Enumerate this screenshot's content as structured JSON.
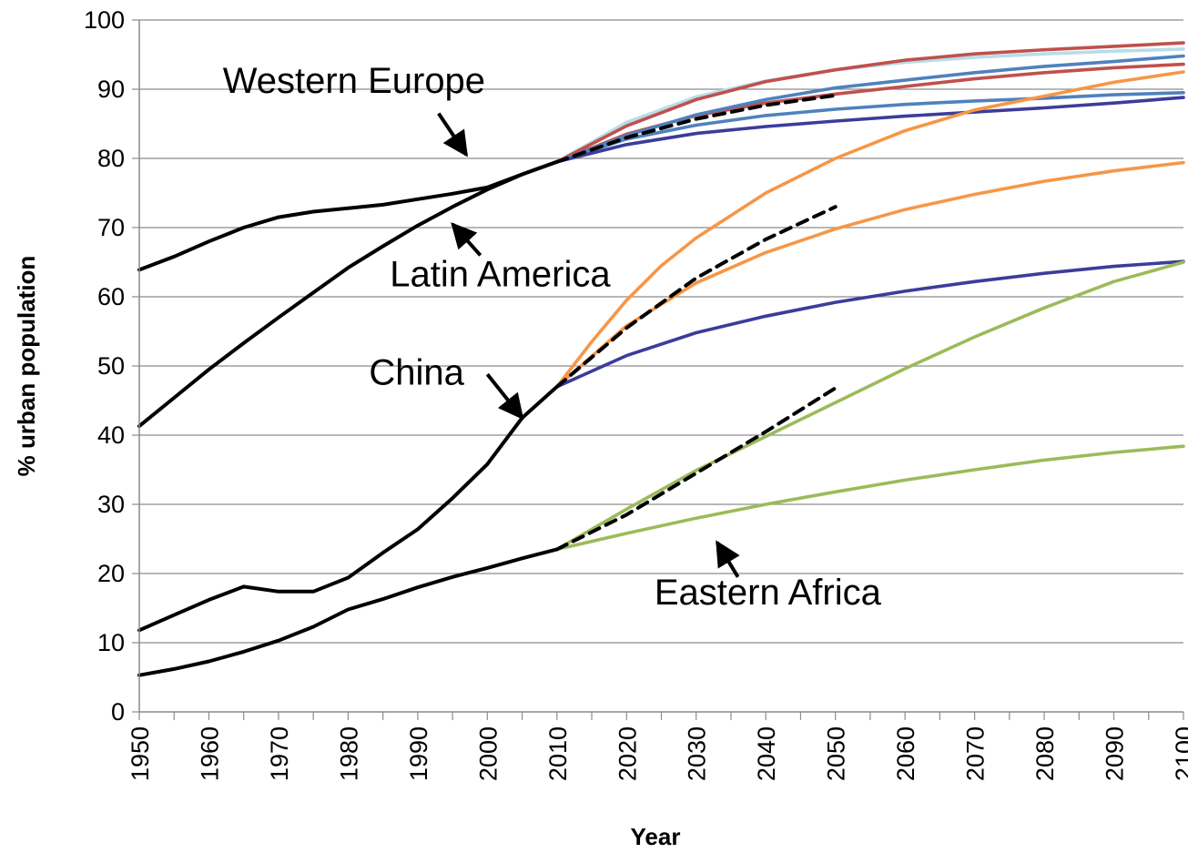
{
  "chart_data": {
    "type": "line",
    "title": "",
    "xlabel": "Year",
    "ylabel": "% urban population",
    "xlim": [
      1950,
      2100
    ],
    "ylim": [
      0,
      100
    ],
    "yticks": [
      0,
      10,
      20,
      30,
      40,
      50,
      60,
      70,
      80,
      90,
      100
    ],
    "xticks": [
      1950,
      1960,
      1970,
      1980,
      1990,
      2000,
      2010,
      2020,
      2030,
      2040,
      2050,
      2060,
      2070,
      2080,
      2090,
      2100
    ],
    "grid": "horizontal",
    "legend": "none",
    "annotations": [
      {
        "text": "Western Europe",
        "x": 1962,
        "y": 89.5,
        "arrow_from": [
          1993,
          86.5
        ],
        "arrow_to": [
          1997,
          80.5
        ]
      },
      {
        "text": "Latin America",
        "x": 1986,
        "y": 61.5,
        "arrow_from": [
          1999,
          66
        ],
        "arrow_to": [
          1995,
          70.5
        ]
      },
      {
        "text": "China",
        "x": 1983,
        "y": 47.3,
        "arrow_from": [
          2000,
          48.8
        ],
        "arrow_to": [
          2005,
          42.5
        ]
      },
      {
        "text": "Eastern Africa",
        "x": 2024,
        "y": 15.5,
        "arrow_from": [
          2036,
          19.5
        ],
        "arrow_to": [
          2033,
          24.5
        ]
      }
    ],
    "series": [
      {
        "color": "#000000",
        "dash": "solid",
        "x": [
          1950,
          1955,
          1960,
          1965,
          1970,
          1975,
          1980,
          1985,
          1990,
          1995,
          2000,
          2005,
          2010
        ],
        "values": [
          63.9,
          65.8,
          68.0,
          70.0,
          71.5,
          72.3,
          72.8,
          73.3,
          74.1,
          74.9,
          75.8,
          77.7,
          79.5
        ]
      },
      {
        "color": "#000000",
        "dash": "solid",
        "x": [
          1950,
          1955,
          1960,
          1965,
          1970,
          1975,
          1980,
          1985,
          1990,
          1995,
          2000,
          2005,
          2010
        ],
        "values": [
          41.3,
          45.4,
          49.5,
          53.3,
          57.0,
          60.6,
          64.2,
          67.3,
          70.3,
          73.0,
          75.5,
          77.7,
          79.5
        ]
      },
      {
        "color": "#000000",
        "dash": "solid",
        "x": [
          1950,
          1955,
          1960,
          1965,
          1970,
          1975,
          1980,
          1985,
          1990,
          1995,
          2000,
          2005,
          2010
        ],
        "values": [
          11.8,
          14.0,
          16.2,
          18.1,
          17.4,
          17.4,
          19.4,
          23.0,
          26.4,
          30.9,
          35.8,
          42.5,
          47.0
        ]
      },
      {
        "color": "#000000",
        "dash": "solid",
        "x": [
          1950,
          1955,
          1960,
          1965,
          1970,
          1975,
          1980,
          1985,
          1990,
          1995,
          2000,
          2005,
          2010
        ],
        "values": [
          5.3,
          6.2,
          7.3,
          8.7,
          10.3,
          12.3,
          14.8,
          16.3,
          18.0,
          19.5,
          20.8,
          22.2,
          23.5
        ]
      },
      {
        "color": "#b7dde8",
        "dash": "solid",
        "x": [
          2010,
          2020,
          2030,
          2040,
          2050,
          2060,
          2070,
          2080,
          2090,
          2100
        ],
        "values": [
          79.5,
          85.2,
          88.9,
          91.2,
          92.8,
          93.9,
          94.6,
          95.1,
          95.5,
          95.8
        ]
      },
      {
        "color": "#c0504d",
        "dash": "solid",
        "x": [
          2010,
          2020,
          2030,
          2040,
          2050,
          2060,
          2070,
          2080,
          2090,
          2100
        ],
        "values": [
          79.5,
          84.7,
          88.5,
          91.1,
          92.8,
          94.2,
          95.1,
          95.7,
          96.2,
          96.7
        ]
      },
      {
        "color": "#c0504d",
        "dash": "solid",
        "x": [
          2010,
          2020,
          2030,
          2040,
          2050,
          2060,
          2070,
          2080,
          2090,
          2100
        ],
        "values": [
          79.5,
          83.5,
          86.2,
          88.0,
          89.3,
          90.4,
          91.5,
          92.4,
          93.1,
          93.6
        ]
      },
      {
        "color": "#4f81bd",
        "dash": "solid",
        "x": [
          2010,
          2020,
          2030,
          2040,
          2050,
          2060,
          2070,
          2080,
          2090,
          2100
        ],
        "values": [
          79.5,
          83.3,
          86.3,
          88.5,
          90.2,
          91.3,
          92.4,
          93.3,
          94.0,
          94.8
        ]
      },
      {
        "color": "#4f81bd",
        "dash": "solid",
        "x": [
          2010,
          2020,
          2030,
          2040,
          2050,
          2060,
          2070,
          2080,
          2090,
          2100
        ],
        "values": [
          79.5,
          82.8,
          84.8,
          86.2,
          87.1,
          87.8,
          88.3,
          88.7,
          89.2,
          89.5
        ]
      },
      {
        "color": "#3c3c9c",
        "dash": "solid",
        "x": [
          2010,
          2020,
          2030,
          2040,
          2050,
          2060,
          2070,
          2080,
          2090,
          2100
        ],
        "values": [
          79.5,
          82.0,
          83.6,
          84.6,
          85.4,
          86.1,
          86.7,
          87.3,
          88.0,
          88.8
        ]
      },
      {
        "color": "#000000",
        "dash": "dashed",
        "x": [
          2010,
          2020,
          2030,
          2040,
          2050
        ],
        "values": [
          79.5,
          83.0,
          85.7,
          87.7,
          89.1
        ]
      },
      {
        "color": "#f79646",
        "dash": "solid",
        "x": [
          2010,
          2015,
          2020,
          2025,
          2030,
          2040,
          2050,
          2060,
          2070,
          2080,
          2090,
          2100
        ],
        "values": [
          47.0,
          53.5,
          59.5,
          64.5,
          68.5,
          75.0,
          80.0,
          84.0,
          87.0,
          89.0,
          91.0,
          92.5
        ]
      },
      {
        "color": "#f79646",
        "dash": "solid",
        "x": [
          2010,
          2020,
          2030,
          2040,
          2050,
          2060,
          2070,
          2080,
          2090,
          2100
        ],
        "values": [
          47.0,
          55.8,
          62.0,
          66.4,
          69.8,
          72.6,
          74.8,
          76.7,
          78.2,
          79.4
        ]
      },
      {
        "color": "#3c3c9c",
        "dash": "solid",
        "x": [
          2010,
          2020,
          2030,
          2040,
          2050,
          2060,
          2070,
          2080,
          2090,
          2100
        ],
        "values": [
          47.0,
          51.5,
          54.8,
          57.2,
          59.2,
          60.8,
          62.2,
          63.4,
          64.4,
          65.1
        ]
      },
      {
        "color": "#000000",
        "dash": "dashed",
        "x": [
          2010,
          2020,
          2030,
          2040,
          2050
        ],
        "values": [
          47.0,
          55.5,
          62.7,
          68.3,
          73.0
        ]
      },
      {
        "color": "#9bbb59",
        "dash": "solid",
        "x": [
          2010,
          2020,
          2030,
          2040,
          2050,
          2060,
          2070,
          2080,
          2090,
          2100
        ],
        "values": [
          23.5,
          29.3,
          34.9,
          39.8,
          44.7,
          49.6,
          54.2,
          58.4,
          62.2,
          65.0
        ]
      },
      {
        "color": "#9bbb59",
        "dash": "solid",
        "x": [
          2010,
          2020,
          2030,
          2040,
          2050,
          2060,
          2070,
          2080,
          2090,
          2100
        ],
        "values": [
          23.5,
          25.8,
          28.0,
          30.0,
          31.8,
          33.5,
          35.0,
          36.4,
          37.5,
          38.4
        ]
      },
      {
        "color": "#000000",
        "dash": "dashed",
        "x": [
          2010,
          2020,
          2030,
          2040,
          2050
        ],
        "values": [
          23.5,
          28.5,
          34.5,
          40.5,
          46.8
        ]
      }
    ]
  }
}
